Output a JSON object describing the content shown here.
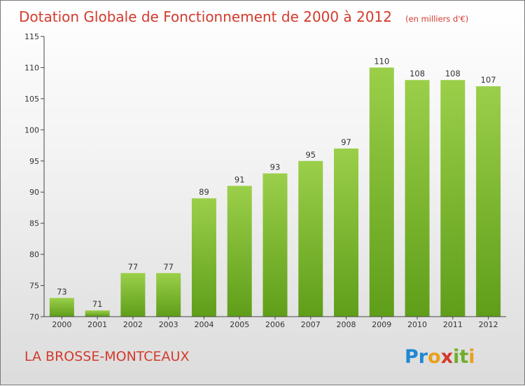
{
  "chart_data": {
    "type": "bar",
    "title": "Dotation Globale de Fonctionnement de 2000 à 2012",
    "subtitle": "(en milliers d'€)",
    "categories": [
      "2000",
      "2001",
      "2002",
      "2003",
      "2004",
      "2005",
      "2006",
      "2007",
      "2008",
      "2009",
      "2010",
      "2011",
      "2012"
    ],
    "values": [
      73,
      71,
      77,
      77,
      89,
      91,
      93,
      95,
      97,
      110,
      108,
      108,
      107
    ],
    "data_labels": [
      "73",
      "71",
      "77",
      "77",
      "89",
      "91",
      "93",
      "95",
      "97",
      "110",
      "108",
      "108",
      "107"
    ],
    "xlabel": "",
    "ylabel": "",
    "ylim": [
      70,
      115
    ],
    "yticks": [
      "70",
      "75",
      "80",
      "85",
      "90",
      "95",
      "100",
      "105",
      "110",
      "115"
    ],
    "grid": false,
    "bar_color_top": "#9bcf4a",
    "bar_color_bottom": "#5f9e19"
  },
  "footer": {
    "commune": "LA BROSSE-MONTCEAUX",
    "logo_letters": [
      "P",
      "r",
      "o",
      "x",
      "i",
      "t",
      "i"
    ],
    "logo_colors": [
      "#1e88d2",
      "#1e88d2",
      "#e8a01b",
      "#d33a2c",
      "#6fae2b",
      "#6fae2b",
      "#e8a01b"
    ]
  }
}
